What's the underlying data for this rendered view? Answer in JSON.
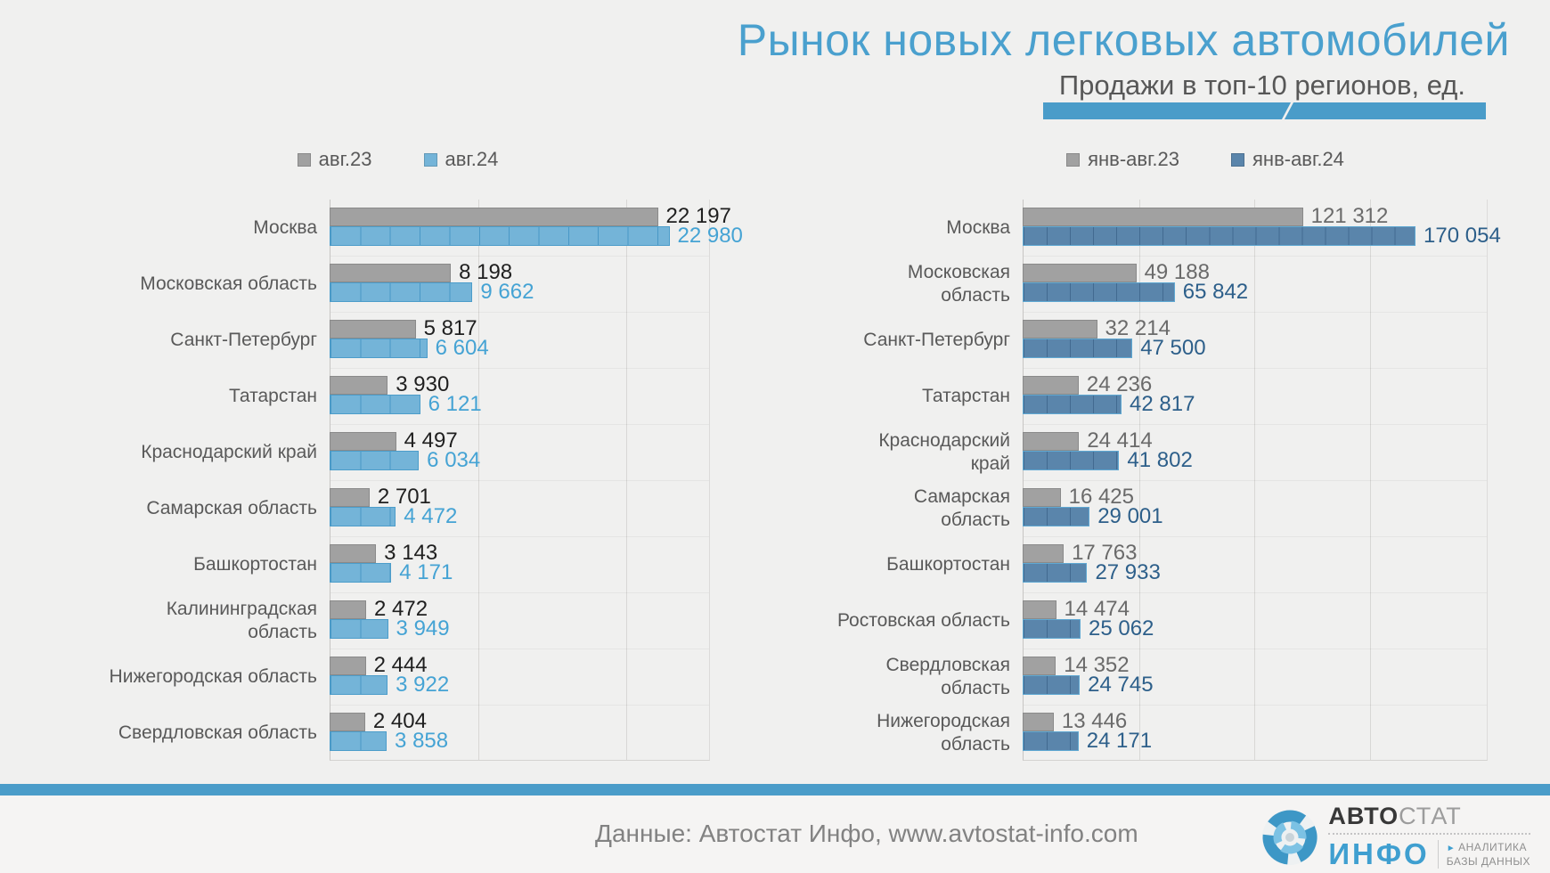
{
  "header": {
    "title": "Рынок новых легковых автомобилей",
    "subtitle": "Продажи в топ-10 регионов, ед."
  },
  "colors": {
    "accent_blue": "#4a9cc9",
    "title_blue": "#4aa0ce",
    "gray_bar": "#a1a1a1",
    "light_blue_bar": "#74b4d8",
    "dark_blue_bar": "#5a85ab",
    "label_gray": "#595959"
  },
  "chart_data": [
    {
      "type": "bar",
      "orientation": "horizontal",
      "xmax": 25600,
      "gridlines": [
        10000,
        20000
      ],
      "minor_step": 2000,
      "categories": [
        "Москва",
        "Московская область",
        "Санкт-Петербург",
        "Татарстан",
        "Краснодарский край",
        "Самарская область",
        "Башкортостан",
        "Калининградская\nобласть",
        "Нижегородская область",
        "Свердловская область"
      ],
      "series": [
        {
          "name": "авг.23",
          "color": "#a1a1a1",
          "border": "#8a8a8a",
          "label_color": "#1f1f1f",
          "texture": "none",
          "values": [
            22197,
            8198,
            5817,
            3930,
            4497,
            2701,
            3143,
            2472,
            2444,
            2404
          ]
        },
        {
          "name": "авг.24",
          "color": "#74b4d8",
          "border": "#4c9dca",
          "label_color": "#45a3d4",
          "texture": "rgba(30,125,180,0.5)",
          "values": [
            22980,
            9662,
            6604,
            6121,
            6034,
            4472,
            4171,
            3949,
            3922,
            3858
          ]
        }
      ]
    },
    {
      "type": "bar",
      "orientation": "horizontal",
      "xmax": 200500,
      "gridlines": [
        50000,
        100000,
        150000
      ],
      "minor_step": 10000,
      "categories": [
        "Москва",
        "Московская\nобласть",
        "Санкт-Петербург",
        "Татарстан",
        "Краснодарский\nкрай",
        "Самарская\nобласть",
        "Башкортостан",
        "Ростовская область",
        "Свердловская\nобласть",
        "Нижегородская\nобласть"
      ],
      "series": [
        {
          "name": "янв-авг.23",
          "color": "#a1a1a1",
          "border": "#8a8a8a",
          "label_color": "#6a6a6a",
          "texture": "none",
          "values": [
            121312,
            49188,
            32214,
            24236,
            24414,
            16425,
            17763,
            14474,
            14352,
            13446
          ]
        },
        {
          "name": "янв-авг.24",
          "color": "#5a85ab",
          "border": "#5fa8d2",
          "label_color": "#2d5f8a",
          "texture": "rgba(20,55,95,0.35)",
          "values": [
            170054,
            65842,
            47500,
            42817,
            41802,
            29001,
            27933,
            25062,
            24745,
            24171
          ]
        }
      ]
    }
  ],
  "footer": {
    "source": "Данные: Автостат Инфо, www.avtostat-info.com",
    "logo": {
      "word1_bold": "АВТО",
      "word1_light": "СТАТ",
      "word2": "ИНФО",
      "tag_line1": "АНАЛИТИКА",
      "tag_line2": "БАЗЫ ДАННЫХ",
      "tag_arrow": "►"
    }
  }
}
